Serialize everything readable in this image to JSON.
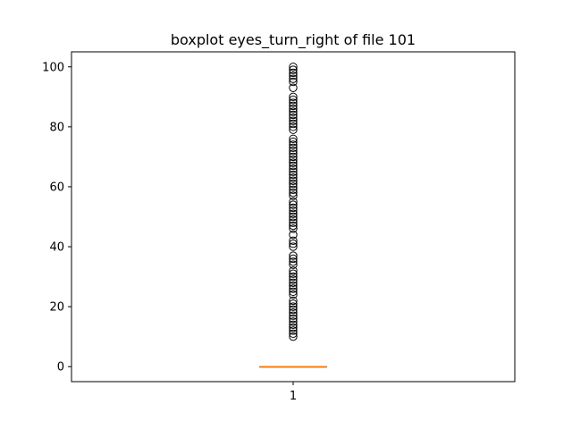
{
  "chart_data": {
    "type": "box",
    "title": "boxplot eyes_turn_right of file 101",
    "xlabel": "",
    "ylabel": "",
    "categories": [
      "1"
    ],
    "ylim": [
      -5,
      105
    ],
    "yticks": [
      0,
      20,
      40,
      60,
      80,
      100
    ],
    "ytick_labels": [
      "0",
      "20",
      "40",
      "60",
      "80",
      "100"
    ],
    "grid": false,
    "box": {
      "q1": 0,
      "median": 0,
      "q3": 0,
      "whisker_low": 0,
      "whisker_high": 0
    },
    "outliers": [
      10,
      11,
      12,
      13,
      14,
      15,
      16,
      17,
      18,
      19,
      20,
      21,
      22,
      24,
      25,
      26,
      27,
      28,
      29,
      30,
      31,
      32,
      34,
      35,
      36,
      37,
      40,
      41,
      42,
      44,
      46,
      47,
      48,
      49,
      50,
      51,
      52,
      53,
      54,
      55,
      57,
      58,
      59,
      60,
      61,
      62,
      63,
      64,
      65,
      66,
      67,
      68,
      69,
      70,
      71,
      72,
      73,
      74,
      75,
      76,
      79,
      80,
      81,
      82,
      83,
      84,
      85,
      86,
      87,
      88,
      89,
      90,
      93,
      95,
      96,
      97,
      98,
      99,
      100
    ],
    "colors": {
      "median": "#ff7f0e",
      "box": "#000000",
      "outlier_edge": "#000000"
    }
  }
}
